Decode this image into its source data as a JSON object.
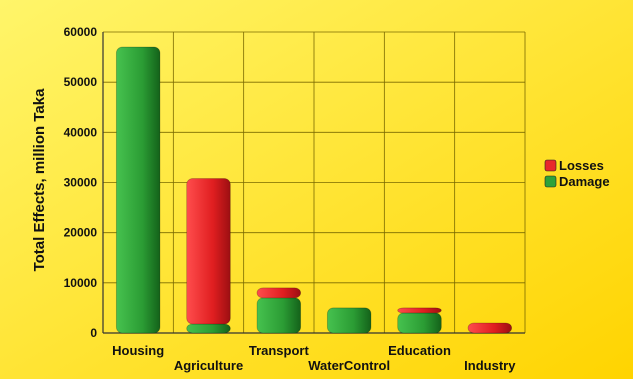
{
  "chart_data": {
    "type": "bar",
    "stacked": true,
    "categories": [
      "Housing",
      "Agriculture",
      "Transport",
      "WaterControl",
      "Education",
      "Industry"
    ],
    "series": [
      {
        "name": "Losses",
        "values": [
          0,
          29000,
          2000,
          0,
          1000,
          2000
        ]
      },
      {
        "name": "Damage",
        "values": [
          57000,
          1800,
          7000,
          5000,
          4000,
          0
        ]
      }
    ],
    "ylabel": "Total Effects, million Taka",
    "xlabel": "",
    "ylim": [
      0,
      60000
    ],
    "yticks": [
      0,
      10000,
      20000,
      30000,
      40000,
      50000,
      60000
    ],
    "grid": true,
    "legend_position": "right",
    "colors": {
      "Losses": "#e8282b",
      "Damage": "#2ea23a",
      "background_top": "#ffe95a",
      "background_bottom": "#ffd000"
    }
  }
}
